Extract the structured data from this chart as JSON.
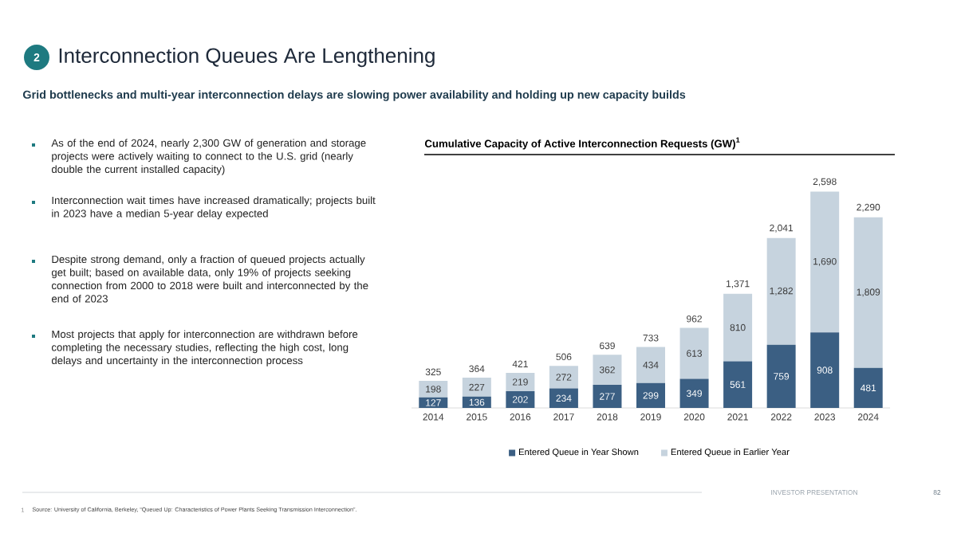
{
  "chart_data": {
    "type": "bar",
    "stacked": true,
    "title": "Cumulative Capacity of Active Interconnection Requests (GW)$^{1}$",
    "categories": [
      "2014",
      "2015",
      "2016",
      "2017",
      "2018",
      "2019",
      "2020",
      "2021",
      "2022",
      "2023",
      "2024"
    ],
    "series": [
      {
        "name": "Entered Queue in Year Shown",
        "color": "#3b5f83",
        "values": [
          127,
          136,
          202,
          234,
          277,
          299,
          349,
          561,
          759,
          908,
          481
        ],
        "value_labels": [
          "127",
          "136",
          "202",
          "234",
          "277",
          "299",
          "349",
          "561",
          "759",
          "908",
          "481"
        ]
      },
      {
        "name": "Entered Queue in Earlier Year",
        "color": "#c6d3de",
        "values": [
          198,
          227,
          219,
          272,
          362,
          434,
          613,
          810,
          1282,
          1690,
          1809
        ],
        "value_labels": [
          "198",
          "227",
          "219",
          "272",
          "362",
          "434",
          "613",
          "810",
          "1,282",
          "1,690",
          "1,809"
        ]
      }
    ],
    "totals": [
      "325",
      "364",
      "421",
      "506",
      "639",
      "733",
      "962",
      "1,371",
      "2,041",
      "2,598",
      "2,290"
    ],
    "legend": "bottom",
    "annotations": [
      "2",
      "Interconnection Queues Are Lengthening",
      "Grid bottlenecks and multi-year interconnection delays are slowing power availability and holding up new capacity builds",
      "As of the end of 2024, nearly 2,300 GW of generation and storage projects were actively waiting to connect to the U.S. grid (nearly double the current installed capacity)",
      "Interconnection wait times have increased dramatically; projects built in 2023 have a median 5-year delay expected",
      "Despite strong demand, only a fraction of queued projects actually get built; based on available data, only 19% of projects seeking connection from 2000 to 2018 were built and interconnected by the end of 2023",
      "Most projects that apply for interconnection are withdrawn before completing the necessary studies, reflecting the high cost, long delays and uncertainty in the interconnection process",
      "1",
      "Source: University of California, Berkeley, “Queued Up: Characteristics of Power Plants Seeking Transmission Interconnection”.",
      "INVESTOR PRESENTATION",
      "82"
    ]
  }
}
